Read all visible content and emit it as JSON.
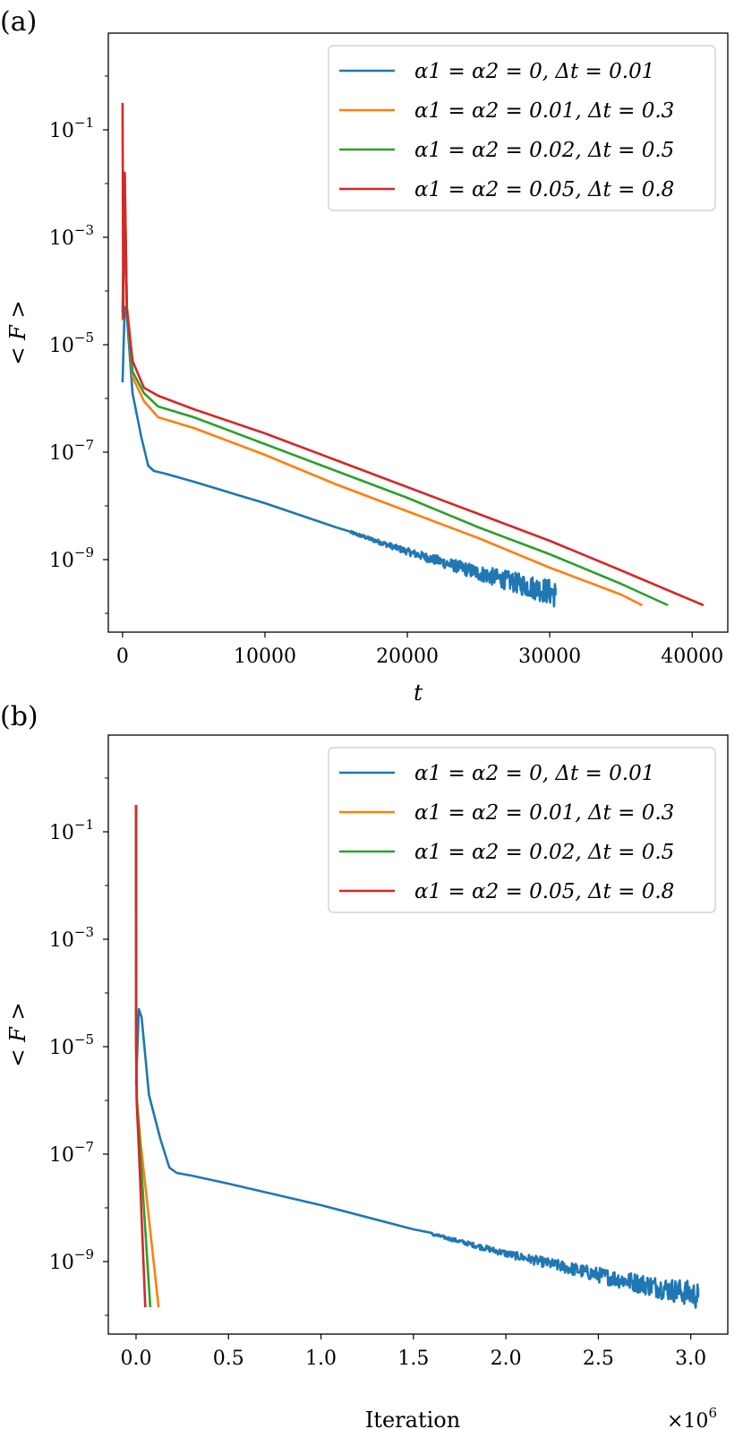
{
  "chart_data": [
    {
      "panel": "(a)",
      "type": "line",
      "xlabel": "t",
      "ylabel": "< F >",
      "xlim": [
        -1000,
        42500
      ],
      "ylim_log10": [
        -10.35,
        0.8
      ],
      "yscale": "log",
      "x_ticks": [
        0,
        10000,
        20000,
        30000,
        40000
      ],
      "x_tick_labels": [
        "0",
        "10000",
        "20000",
        "30000",
        "40000"
      ],
      "y_ticks_log10": [
        -1,
        -3,
        -5,
        -7,
        -9
      ],
      "y_tick_labels": [
        {
          "base": "10",
          "exp": "−1"
        },
        {
          "base": "10",
          "exp": "−3"
        },
        {
          "base": "10",
          "exp": "−5"
        },
        {
          "base": "10",
          "exp": "−7"
        },
        {
          "base": "10",
          "exp": "−9"
        }
      ],
      "legend_position": "top-right",
      "grid": false,
      "series": [
        {
          "name": "α1 = α2 = 0, Δt = 0.01",
          "color": "#1f77b4",
          "noise_from_x": 16000,
          "log10_points": [
            [
              0,
              -5.7
            ],
            [
              150,
              -4.3
            ],
            [
              300,
              -4.45
            ],
            [
              700,
              -5.9
            ],
            [
              1300,
              -6.7
            ],
            [
              1800,
              -7.25
            ],
            [
              2200,
              -7.35
            ],
            [
              3000,
              -7.4
            ],
            [
              5000,
              -7.55
            ],
            [
              10000,
              -7.95
            ],
            [
              15000,
              -8.4
            ],
            [
              20000,
              -8.85
            ],
            [
              25000,
              -9.25
            ],
            [
              30000,
              -9.6
            ],
            [
              30400,
              -9.65
            ]
          ]
        },
        {
          "name": "α1 = α2 = 0.01, Δt = 0.3",
          "color": "#ff7f0e",
          "log10_points": [
            [
              0,
              -4.55
            ],
            [
              150,
              -1.8
            ],
            [
              300,
              -4.3
            ],
            [
              700,
              -5.6
            ],
            [
              1500,
              -6.05
            ],
            [
              2500,
              -6.35
            ],
            [
              5000,
              -6.55
            ],
            [
              10000,
              -7.05
            ],
            [
              15000,
              -7.6
            ],
            [
              20000,
              -8.1
            ],
            [
              25000,
              -8.6
            ],
            [
              30000,
              -9.15
            ],
            [
              35000,
              -9.65
            ],
            [
              36500,
              -9.85
            ]
          ]
        },
        {
          "name": "α1 = α2 = 0.02, Δt = 0.5",
          "color": "#2ca02c",
          "log10_points": [
            [
              0,
              -4.4
            ],
            [
              150,
              -1.8
            ],
            [
              300,
              -4.3
            ],
            [
              700,
              -5.5
            ],
            [
              1500,
              -5.9
            ],
            [
              2500,
              -6.15
            ],
            [
              5000,
              -6.35
            ],
            [
              10000,
              -6.85
            ],
            [
              15000,
              -7.35
            ],
            [
              20000,
              -7.85
            ],
            [
              25000,
              -8.4
            ],
            [
              30000,
              -8.9
            ],
            [
              35000,
              -9.45
            ],
            [
              38300,
              -9.85
            ]
          ]
        },
        {
          "name": "α1 = α2 = 0.05, Δt = 0.8",
          "color": "#d62728",
          "log10_points": [
            [
              0,
              -0.5
            ],
            [
              50,
              -4.5
            ],
            [
              150,
              -1.8
            ],
            [
              300,
              -4.3
            ],
            [
              700,
              -5.3
            ],
            [
              1500,
              -5.8
            ],
            [
              2500,
              -5.95
            ],
            [
              5000,
              -6.2
            ],
            [
              10000,
              -6.65
            ],
            [
              15000,
              -7.15
            ],
            [
              20000,
              -7.65
            ],
            [
              25000,
              -8.15
            ],
            [
              30000,
              -8.65
            ],
            [
              35000,
              -9.2
            ],
            [
              40800,
              -9.85
            ]
          ]
        }
      ]
    },
    {
      "panel": "(b)",
      "type": "line",
      "xlabel": "Iteration",
      "x_multiplier": {
        "base": "×10",
        "exp": "6"
      },
      "ylabel": "< F >",
      "xlim": [
        -0.15,
        3.2
      ],
      "ylim_log10": [
        -10.35,
        0.8
      ],
      "yscale": "log",
      "x_ticks": [
        0.0,
        0.5,
        1.0,
        1.5,
        2.0,
        2.5,
        3.0
      ],
      "x_tick_labels": [
        "0.0",
        "0.5",
        "1.0",
        "1.5",
        "2.0",
        "2.5",
        "3.0"
      ],
      "y_ticks_log10": [
        -1,
        -3,
        -5,
        -7,
        -9
      ],
      "y_tick_labels": [
        {
          "base": "10",
          "exp": "−1"
        },
        {
          "base": "10",
          "exp": "−3"
        },
        {
          "base": "10",
          "exp": "−5"
        },
        {
          "base": "10",
          "exp": "−7"
        },
        {
          "base": "10",
          "exp": "−9"
        }
      ],
      "legend_position": "top-right",
      "grid": false,
      "series": [
        {
          "name": "α1 = α2 = 0, Δt = 0.01",
          "color": "#1f77b4",
          "noise_from_x": 1.6,
          "log10_points": [
            [
              0.0,
              -5.7
            ],
            [
              0.015,
              -4.3
            ],
            [
              0.03,
              -4.45
            ],
            [
              0.07,
              -5.9
            ],
            [
              0.13,
              -6.7
            ],
            [
              0.18,
              -7.25
            ],
            [
              0.22,
              -7.35
            ],
            [
              0.3,
              -7.4
            ],
            [
              0.5,
              -7.55
            ],
            [
              1.0,
              -7.95
            ],
            [
              1.5,
              -8.4
            ],
            [
              2.0,
              -8.85
            ],
            [
              2.5,
              -9.25
            ],
            [
              3.0,
              -9.6
            ],
            [
              3.04,
              -9.65
            ]
          ]
        },
        {
          "name": "α1 = α2 = 0.01, Δt = 0.3",
          "color": "#ff7f0e",
          "log10_points": [
            [
              0.0,
              -0.5
            ],
            [
              0.0005,
              -5.0
            ],
            [
              0.005,
              -6.0
            ],
            [
              0.025,
              -6.8
            ],
            [
              0.122,
              -9.85
            ]
          ]
        },
        {
          "name": "α1 = α2 = 0.02, Δt = 0.5",
          "color": "#2ca02c",
          "log10_points": [
            [
              0.0,
              -0.5
            ],
            [
              0.0004,
              -5.0
            ],
            [
              0.004,
              -6.0
            ],
            [
              0.02,
              -6.8
            ],
            [
              0.077,
              -9.85
            ]
          ]
        },
        {
          "name": "α1 = α2 = 0.05, Δt = 0.8",
          "color": "#d62728",
          "log10_points": [
            [
              0.0,
              -0.5
            ],
            [
              0.0003,
              -5.0
            ],
            [
              0.003,
              -6.0
            ],
            [
              0.015,
              -6.9
            ],
            [
              0.05,
              -9.85
            ]
          ]
        }
      ]
    }
  ]
}
